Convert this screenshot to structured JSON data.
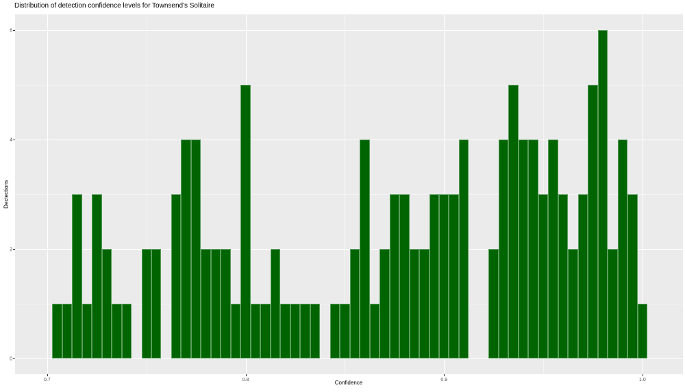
{
  "chart_data": {
    "type": "bar",
    "subtype": "histogram",
    "title": "Distribution of detection confidence levels for Townsend's Solitaire",
    "xlabel": "Confidence",
    "ylabel": "Dectections",
    "legend": "none",
    "grid": "on",
    "bin_width": 0.005,
    "bin_centers": [
      0.705,
      0.71,
      0.715,
      0.72,
      0.725,
      0.73,
      0.735,
      0.74,
      0.745,
      0.75,
      0.755,
      0.76,
      0.765,
      0.77,
      0.775,
      0.78,
      0.785,
      0.79,
      0.795,
      0.8,
      0.805,
      0.81,
      0.815,
      0.82,
      0.825,
      0.83,
      0.835,
      0.84,
      0.845,
      0.85,
      0.855,
      0.86,
      0.865,
      0.87,
      0.875,
      0.88,
      0.885,
      0.89,
      0.895,
      0.9,
      0.905,
      0.91,
      0.915,
      0.92,
      0.925,
      0.93,
      0.935,
      0.94,
      0.945,
      0.95,
      0.955,
      0.96,
      0.965,
      0.97,
      0.975,
      0.98,
      0.985,
      0.99,
      0.995,
      1.0
    ],
    "counts": [
      1,
      1,
      3,
      1,
      3,
      2,
      1,
      1,
      0,
      2,
      2,
      0,
      3,
      4,
      4,
      2,
      2,
      2,
      1,
      5,
      1,
      1,
      2,
      1,
      1,
      1,
      1,
      0,
      1,
      1,
      2,
      4,
      1,
      2,
      3,
      3,
      2,
      2,
      3,
      3,
      3,
      4,
      0,
      0,
      2,
      4,
      5,
      4,
      4,
      3,
      4,
      3,
      2,
      3,
      5,
      6,
      2,
      4,
      3,
      1
    ],
    "x_tick_labels": [
      "0.7",
      "0.8",
      "0.9",
      "1.0"
    ],
    "x_tick_values": [
      0.7,
      0.8,
      0.9,
      1.0
    ],
    "y_tick_labels": [
      "0",
      "2",
      "4",
      "6"
    ],
    "y_tick_values": [
      0,
      2,
      4,
      6
    ],
    "x_minor_gridlines": [
      0.75,
      0.85,
      0.95
    ],
    "y_minor_gridlines": [
      1,
      3,
      5
    ],
    "xlim": [
      0.6838,
      1.0204
    ],
    "ylim": [
      -0.2875,
      6.2875
    ],
    "colors": {
      "bar_fill": "#006400",
      "bar_edge": "#5a9e5c",
      "panel_bg": "#EBEBEB",
      "gridline": "#FFFFFF",
      "tick_label": "#4D4D4D",
      "tick_mark": "#333333",
      "title_text": "#000000"
    }
  }
}
